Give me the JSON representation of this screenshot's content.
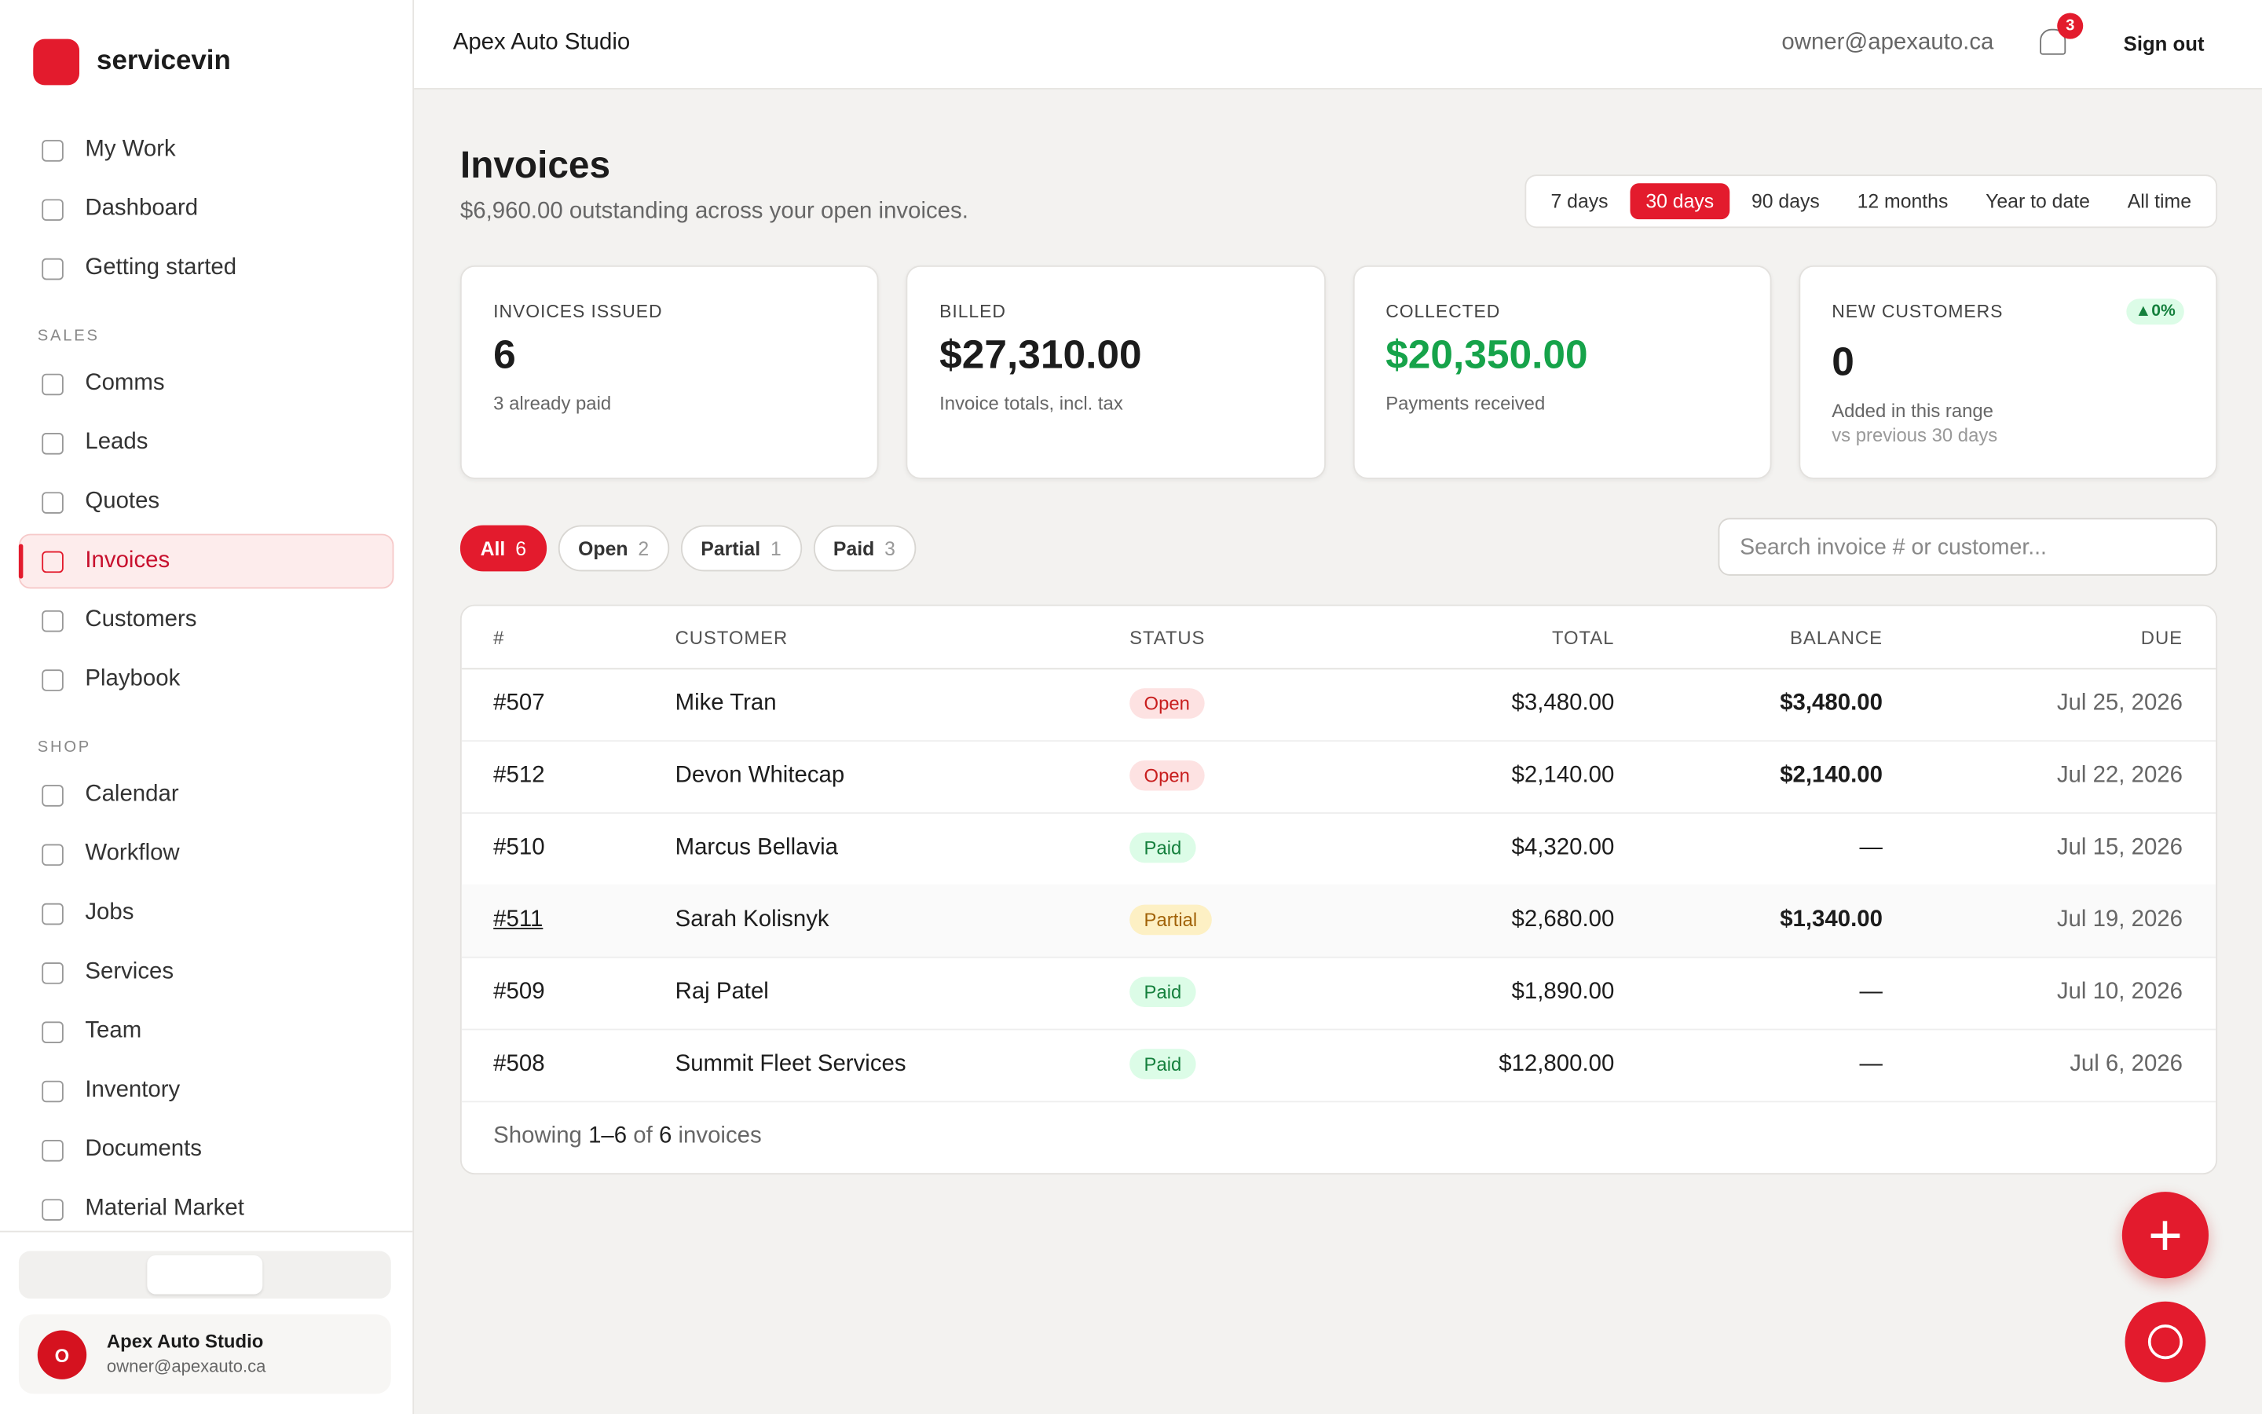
{
  "sidebar": {
    "brand": "servicevin",
    "nav": [
      {
        "label": "My Work"
      },
      {
        "label": "Dashboard"
      },
      {
        "label": "Getting started"
      }
    ],
    "sections": [
      {
        "title": "SALES",
        "items": [
          {
            "label": "Comms"
          },
          {
            "label": "Leads"
          },
          {
            "label": "Quotes"
          },
          {
            "label": "Invoices",
            "active": true
          },
          {
            "label": "Customers"
          },
          {
            "label": "Playbook"
          }
        ]
      },
      {
        "title": "SHOP",
        "items": [
          {
            "label": "Calendar"
          },
          {
            "label": "Workflow"
          },
          {
            "label": "Jobs"
          },
          {
            "label": "Services"
          },
          {
            "label": "Team"
          },
          {
            "label": "Inventory"
          },
          {
            "label": "Documents"
          },
          {
            "label": "Material Market"
          }
        ]
      }
    ],
    "user": {
      "initial": "O",
      "name": "Apex Auto Studio",
      "email": "owner@apexauto.ca"
    }
  },
  "header": {
    "business": "Apex Auto Studio",
    "email": "owner@apexauto.ca",
    "notifications": "3",
    "sign_out": "Sign out"
  },
  "page": {
    "title": "Invoices",
    "subtitle": "$6,960.00 outstanding across your open invoices.",
    "ranges": [
      "7 days",
      "30 days",
      "90 days",
      "12 months",
      "Year to date",
      "All time"
    ],
    "active_range": 1
  },
  "cards": [
    {
      "label": "INVOICES ISSUED",
      "value": "6",
      "note": "3 already paid"
    },
    {
      "label": "BILLED",
      "value": "$27,310.00",
      "note": "Invoice totals, incl. tax"
    },
    {
      "label": "COLLECTED",
      "value": "$20,350.00",
      "note": "Payments received",
      "green": true
    },
    {
      "label": "NEW CUSTOMERS",
      "badge": "▲0%",
      "value": "0",
      "note": "Added in this range",
      "note2": "vs previous 30 days"
    }
  ],
  "filters": [
    {
      "label": "All",
      "count": "6",
      "active": true
    },
    {
      "label": "Open",
      "count": "2"
    },
    {
      "label": "Partial",
      "count": "1"
    },
    {
      "label": "Paid",
      "count": "3"
    }
  ],
  "search_placeholder": "Search invoice # or customer...",
  "table": {
    "columns": [
      "#",
      "CUSTOMER",
      "STATUS",
      "TOTAL",
      "BALANCE",
      "DUE"
    ],
    "rows": [
      [
        "#507",
        "Mike Tran",
        "Open",
        "$3,480.00",
        "$3,480.00",
        "Jul 25, 2026"
      ],
      [
        "#512",
        "Devon Whitecap",
        "Open",
        "$2,140.00",
        "$2,140.00",
        "Jul 22, 2026"
      ],
      [
        "#510",
        "Marcus Bellavia",
        "Paid",
        "$4,320.00",
        "—",
        "Jul 15, 2026"
      ],
      [
        "#511",
        "Sarah Kolisnyk",
        "Partial",
        "$2,680.00",
        "$1,340.00",
        "Jul 19, 2026"
      ],
      [
        "#509",
        "Raj Patel",
        "Paid",
        "$1,890.00",
        "—",
        "Jul 10, 2026"
      ],
      [
        "#508",
        "Summit Fleet Services",
        "Paid",
        "$12,800.00",
        "—",
        "Jul 6, 2026"
      ]
    ],
    "footer": [
      "Showing",
      "1–6",
      "of",
      "6",
      "invoices"
    ]
  }
}
